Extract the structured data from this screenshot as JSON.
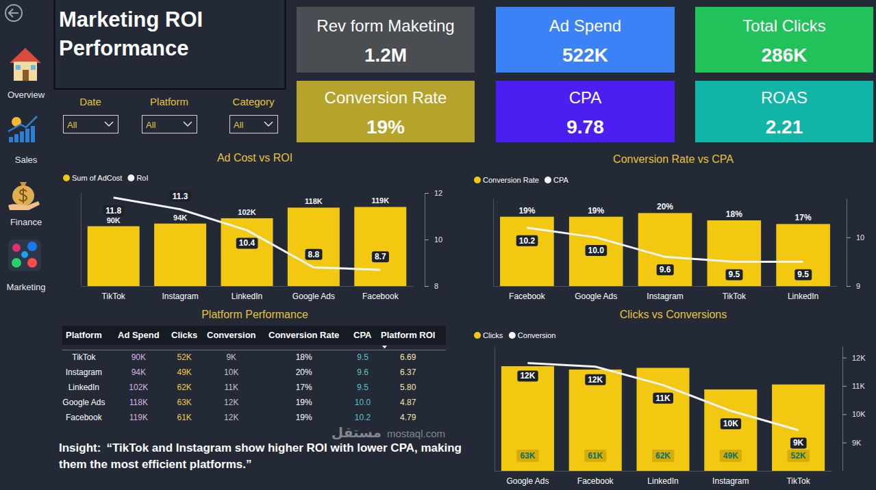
{
  "header": {
    "title": "Marketing ROI Performance"
  },
  "nav": [
    "Overview",
    "Sales",
    "Finance",
    "Marketing"
  ],
  "filters": [
    {
      "label": "Date",
      "value": "All"
    },
    {
      "label": "Platform",
      "value": "All"
    },
    {
      "label": "Category",
      "value": "All"
    }
  ],
  "kpis": [
    {
      "label": "Rev form Maketing",
      "value": "1.2M"
    },
    {
      "label": "Ad Spend",
      "value": "522K"
    },
    {
      "label": "Total Clicks",
      "value": "286K"
    },
    {
      "label": "Conversion Rate",
      "value": "19%"
    },
    {
      "label": "CPA",
      "value": "9.78"
    },
    {
      "label": "ROAS",
      "value": "2.21"
    }
  ],
  "chart_data": [
    {
      "type": "bar",
      "title": "Ad Cost vs ROI",
      "categories": [
        "TikTok",
        "Instagram",
        "LinkedIn",
        "Google Ads",
        "Facebook"
      ],
      "series": [
        {
          "name": "Sum of AdCost",
          "type": "bar",
          "color": "#f2c811",
          "values": [
            90000,
            94000,
            102000,
            118000,
            119000
          ],
          "value_labels": [
            "90K",
            "94K",
            "102K",
            "118K",
            "119K"
          ]
        },
        {
          "name": "RoI",
          "type": "line",
          "color": "#f3f4f6",
          "axis": "y2",
          "values": [
            11.8,
            11.3,
            10.4,
            8.8,
            8.7
          ]
        }
      ],
      "ylim": [
        0,
        140000
      ],
      "yticks": [],
      "y2lim": [
        8,
        12
      ],
      "y2ticks": [
        8,
        10,
        12
      ],
      "legend": "top-left",
      "data_labels": true
    },
    {
      "type": "bar",
      "title": "Conversion Rate vs CPA",
      "categories": [
        "Facebook",
        "Google Ads",
        "Instagram",
        "TikTok",
        "LinkedIn"
      ],
      "series": [
        {
          "name": "Conversion Rate",
          "type": "bar",
          "color": "#f2c811",
          "values": [
            19,
            19,
            20,
            18,
            17
          ],
          "value_labels": [
            "19%",
            "19%",
            "20%",
            "18%",
            "17%"
          ]
        },
        {
          "name": "CPA",
          "type": "line",
          "color": "#f3f4f6",
          "axis": "y2",
          "values": [
            10.2,
            10.0,
            9.6,
            9.5,
            9.5
          ],
          "value_labels": [
            "10.2",
            "10.0",
            "9.6",
            "9.5",
            "9.5"
          ]
        }
      ],
      "ylim": [
        0,
        24
      ],
      "yticks": [],
      "y2lim": [
        9,
        10.8
      ],
      "y2ticks": [
        9,
        10
      ],
      "legend": "top-left",
      "data_labels": true
    },
    {
      "type": "bar",
      "title": "Clicks vs Conversions",
      "categories": [
        "Google Ads",
        "Facebook",
        "LinkedIn",
        "Instagram",
        "TikTok"
      ],
      "series": [
        {
          "name": "Clicks",
          "type": "bar",
          "color": "#f2c811",
          "values": [
            63000,
            61000,
            62000,
            49000,
            52000
          ],
          "value_labels": [
            "63K",
            "61K",
            "62K",
            "49K",
            "52K"
          ]
        },
        {
          "name": "Conversion",
          "type": "line",
          "color": "#f3f4f6",
          "axis": "y2",
          "values": [
            11810,
            11680,
            11030,
            10120,
            9440
          ],
          "value_labels": [
            "12K",
            "12K",
            "11K",
            "10K",
            "9K"
          ]
        }
      ],
      "ylim": [
        0,
        75000
      ],
      "yticks": [],
      "y2lim": [
        8000,
        12400
      ],
      "y2ticks": [
        {
          "value": 9000,
          "label": "9K"
        },
        {
          "value": 10000,
          "label": "10K"
        },
        {
          "value": 11000,
          "label": "11K"
        },
        {
          "value": 12000,
          "label": "12K"
        }
      ],
      "legend": "top-left",
      "data_labels": true
    }
  ],
  "table": {
    "title": "Platform Performance",
    "columns": [
      "Platform",
      "Ad Spend",
      "Clicks",
      "Conversion",
      "Conversion Rate",
      "CPA",
      "Platform ROI"
    ],
    "rows": [
      [
        "TikTok",
        "90K",
        "52K",
        "9K",
        "18%",
        "9.5",
        "6.69"
      ],
      [
        "Instagram",
        "94K",
        "49K",
        "10K",
        "20%",
        "9.6",
        "6.37"
      ],
      [
        "LinkedIn",
        "102K",
        "62K",
        "11K",
        "17%",
        "9.5",
        "5.80"
      ],
      [
        "Google Ads",
        "118K",
        "63K",
        "12K",
        "19%",
        "10.0",
        "4.87"
      ],
      [
        "Facebook",
        "119K",
        "61K",
        "12K",
        "19%",
        "10.2",
        "4.79"
      ]
    ]
  },
  "insight": {
    "label": "Insight:",
    "text": "“TikTok and Instagram show higher ROI with lower CPA, making them the most efficient platforms.”"
  },
  "watermark": [
    "مستقل",
    "mostaql.com"
  ]
}
